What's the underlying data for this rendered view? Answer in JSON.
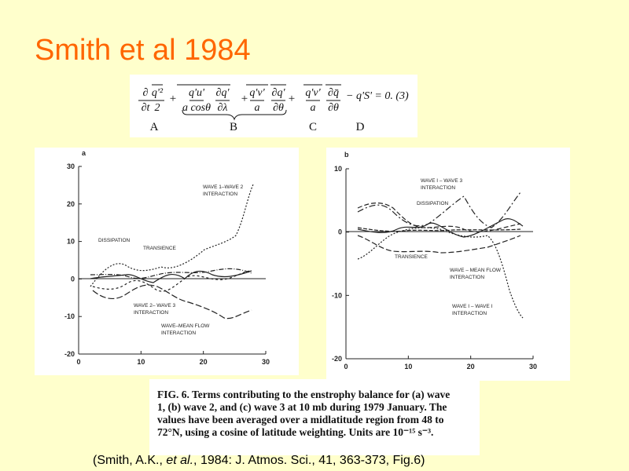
{
  "header": {
    "title": "Smith et al 1984"
  },
  "equation": {
    "numerators": [
      "∂",
      "q'²",
      "q'u'",
      "∂q'",
      "q'v'",
      "∂q'",
      "q'v'",
      "∂q̄"
    ],
    "denominators": [
      "∂t",
      "2",
      "a cosθ",
      "∂λ",
      "a",
      "∂θ",
      "a",
      "∂θ"
    ],
    "operators": [
      "+",
      "+",
      "+"
    ],
    "tail": "− q'S' = 0. (3)",
    "labels": [
      "A",
      "B",
      "C",
      "D"
    ]
  },
  "panels": [
    {
      "label": "a",
      "yticks": [
        "30",
        "20",
        "10",
        "0",
        "-10",
        "-20"
      ],
      "xticks": [
        "0",
        "10",
        "20",
        "30"
      ],
      "annotations": [
        [
          "WAVE 1–WAVE 2",
          "INTERACTION"
        ],
        [
          "DISSIPATION"
        ],
        [
          "TRANSIENCE"
        ],
        [
          "WAVE 2– WAVE 3",
          "INTERACTION"
        ],
        [
          "WAVE–MEAN FLOW",
          "INTERACTION"
        ]
      ]
    },
    {
      "label": "b",
      "yticks": [
        "10",
        "0",
        "-10",
        "-20"
      ],
      "xticks": [
        "0",
        "10",
        "20",
        "30"
      ],
      "annotations": [
        [
          "WAVE I – WAVE 3",
          "INTERACTION"
        ],
        [
          "DISSIPATION"
        ],
        [
          "TRANSIENCE"
        ],
        [
          "WAVE – MEAN FLOW",
          "INTERACTION"
        ],
        [
          "WAVE I – WAVE I",
          "INTERACTION"
        ]
      ]
    }
  ],
  "caption": [
    "FIG. 6. Terms contributing to the enstrophy balance for (a) wave",
    "1, (b) wave 2, and (c) wave 3 at 10 mb during 1979 January. The",
    "values have been averaged over a midlatitude region from 48 to",
    "72°N, using a cosine of latitude weighting. Units are 10⁻¹⁵ s⁻³."
  ],
  "citation": {
    "before": "(Smith, A.K., ",
    "italic": "et al.",
    "after": ", 1984: J. Atmos. Sci., 41, 363-373, Fig.6)"
  }
}
